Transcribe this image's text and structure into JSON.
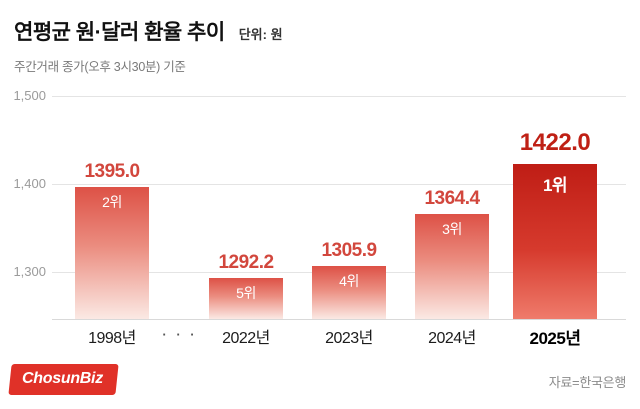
{
  "header": {
    "title": "연평균 원·달러 환율 추이",
    "unit": "단위: 원",
    "subtitle": "주간거래 종가(오후 3시30분) 기준"
  },
  "footer": {
    "logo": "ChosunBiz",
    "source": "자료=한국은행"
  },
  "chart_data": {
    "type": "bar",
    "title": "연평균 원·달러 환율 추이",
    "subtitle": "주간거래 종가(오후 3시30분) 기준",
    "ylabel": "원",
    "ylim": [
      1245,
      1520
    ],
    "grid": true,
    "yticks": [
      {
        "label": "1,500",
        "value": 1500
      },
      {
        "label": "1,400",
        "value": 1400
      },
      {
        "label": "1,300",
        "value": 1300
      }
    ],
    "ellipsis": "· · ·",
    "bars": [
      {
        "category": "1998년",
        "value": 1395.0,
        "value_label": "1395.0",
        "rank": "2위",
        "highlight": false
      },
      {
        "category": "2022년",
        "value": 1292.2,
        "value_label": "1292.2",
        "rank": "5위",
        "highlight": false
      },
      {
        "category": "2023년",
        "value": 1305.9,
        "value_label": "1305.9",
        "rank": "4위",
        "highlight": false
      },
      {
        "category": "2024년",
        "value": 1364.4,
        "value_label": "1364.4",
        "rank": "3위",
        "highlight": false
      },
      {
        "category": "2025년",
        "value": 1422.0,
        "value_label": "1422.0",
        "rank": "1위",
        "highlight": true
      }
    ],
    "colors": {
      "bar_top": "#dd5146",
      "bar_bottom": "#fbe9e4",
      "highlight_bar_top": "#bf1d15",
      "highlight_bar_bottom": "#ef7b6b",
      "value_label": "#d2473d",
      "highlight_value_label": "#bf2015",
      "rank_label": "#ffffff"
    }
  }
}
